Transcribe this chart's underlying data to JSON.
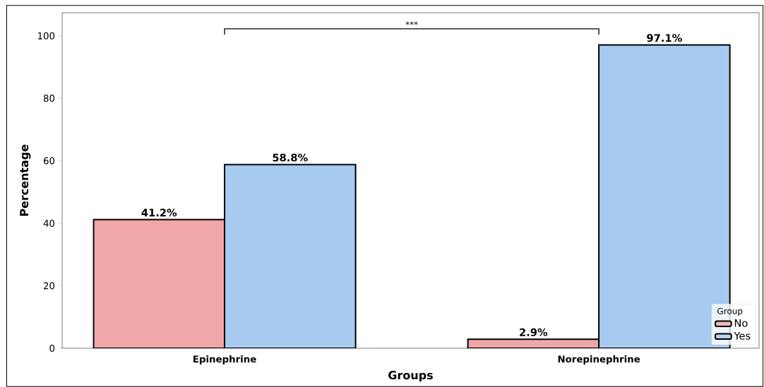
{
  "chart_data": {
    "type": "bar",
    "xlabel": "Groups",
    "ylabel": "Percentage",
    "legend_title": "Group",
    "legend": "bottom right",
    "categories": [
      "Epinephrine",
      "Norepinephrine"
    ],
    "series": [
      {
        "name": "No",
        "color": "#f1a7a7",
        "values": [
          41.2,
          2.9
        ],
        "value_labels": [
          "41.2%",
          "2.9%"
        ]
      },
      {
        "name": "Yes",
        "color": "#a7cbf0",
        "values": [
          58.8,
          97.1
        ],
        "value_labels": [
          "58.8%",
          "97.1%"
        ]
      }
    ],
    "ylim": [
      0,
      107.4
    ],
    "yticks": [
      0,
      20,
      40,
      60,
      80,
      100
    ],
    "grid": false,
    "annotations": [
      "***"
    ]
  }
}
